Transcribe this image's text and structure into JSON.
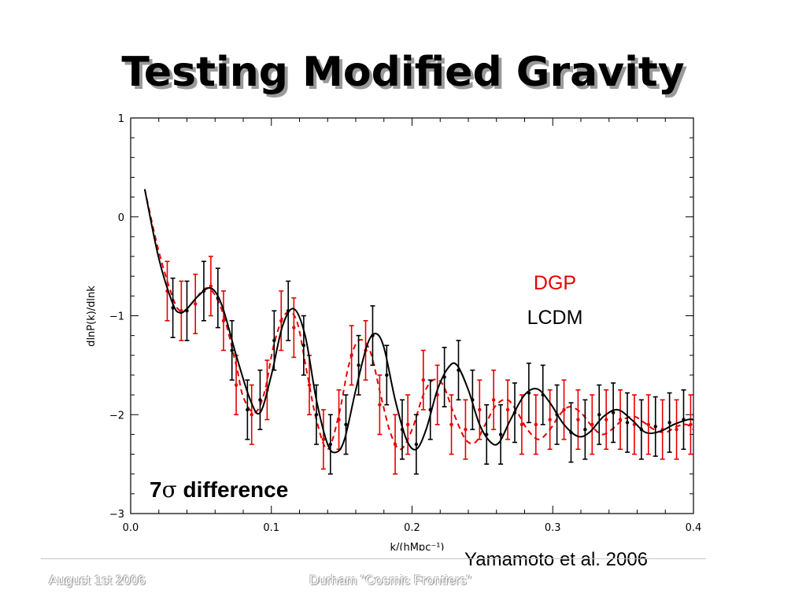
{
  "slide": {
    "title": "Testing Modified Gravity",
    "footer_left": "August 1st 2006",
    "footer_center": "Durham \"Cosmic Frontiers\""
  },
  "legend": {
    "dgp_label": "DGP",
    "lcdm_label": "LCDM",
    "dgp_color": "#e60000",
    "lcdm_color": "#000000"
  },
  "annotation": {
    "sigma_count": "7",
    "sigma_symbol": "σ",
    "text": "difference"
  },
  "citation": "Yamamoto et al. 2006",
  "chart_data": {
    "type": "line",
    "xlabel": "k/(hMpc⁻¹)",
    "ylabel": "dlnP(k)/dlnk",
    "xlim": [
      0.0,
      0.4
    ],
    "ylim": [
      -3,
      1
    ],
    "x_ticks": [
      "0.0",
      "0.1",
      "0.2",
      "0.3",
      "0.4"
    ],
    "y_ticks": [
      "1",
      "0",
      "−1",
      "−2",
      "−3"
    ],
    "grid": false,
    "legend_position": "right",
    "series": [
      {
        "name": "DGP",
        "color": "#e60000",
        "style": "dashed",
        "x": [
          0.01,
          0.02,
          0.03,
          0.035,
          0.04,
          0.045,
          0.055,
          0.065,
          0.075,
          0.08,
          0.088,
          0.095,
          0.102,
          0.11,
          0.118,
          0.125,
          0.132,
          0.14,
          0.148,
          0.155,
          0.162,
          0.17,
          0.178,
          0.185,
          0.192,
          0.2,
          0.208,
          0.215,
          0.222,
          0.23,
          0.238,
          0.245,
          0.252,
          0.26,
          0.268,
          0.275,
          0.282,
          0.29,
          0.298,
          0.305,
          0.312,
          0.32,
          0.328,
          0.335,
          0.342,
          0.35,
          0.358,
          0.365,
          0.372,
          0.38,
          0.388,
          0.395,
          0.4
        ],
        "y": [
          0.28,
          -0.35,
          -0.82,
          -0.95,
          -0.93,
          -0.85,
          -0.72,
          -0.95,
          -1.5,
          -1.82,
          -1.98,
          -1.78,
          -1.28,
          -0.98,
          -1.05,
          -1.55,
          -2.05,
          -2.35,
          -2.0,
          -1.5,
          -1.25,
          -1.35,
          -1.82,
          -2.2,
          -2.35,
          -2.15,
          -1.8,
          -1.65,
          -1.7,
          -2.0,
          -2.25,
          -2.28,
          -2.1,
          -1.9,
          -1.85,
          -1.98,
          -2.15,
          -2.25,
          -2.15,
          -2.0,
          -1.92,
          -1.98,
          -2.12,
          -2.2,
          -2.15,
          -2.05,
          -2.02,
          -2.08,
          -2.15,
          -2.18,
          -2.12,
          -2.1,
          -2.15
        ],
        "points_x": [
          0.026,
          0.036,
          0.046,
          0.057,
          0.066,
          0.075,
          0.086,
          0.097,
          0.107,
          0.116,
          0.127,
          0.137,
          0.148,
          0.157,
          0.167,
          0.177,
          0.188,
          0.197,
          0.208,
          0.218,
          0.228,
          0.238,
          0.248,
          0.258,
          0.268,
          0.278,
          0.288,
          0.298,
          0.308,
          0.318,
          0.328,
          0.338,
          0.348,
          0.358,
          0.368,
          0.378,
          0.388,
          0.398
        ],
        "points_y": [
          -0.75,
          -0.95,
          -0.88,
          -0.7,
          -1.05,
          -1.7,
          -2.0,
          -1.75,
          -1.05,
          -1.12,
          -1.7,
          -2.25,
          -2.05,
          -1.4,
          -1.35,
          -1.9,
          -2.3,
          -2.1,
          -1.65,
          -1.8,
          -2.1,
          -2.15,
          -1.95,
          -1.85,
          -1.95,
          -2.1,
          -2.1,
          -2.05,
          -1.95,
          -2.05,
          -2.1,
          -2.05,
          -2.05,
          -2.1,
          -2.1,
          -2.15,
          -2.15,
          -2.1
        ],
        "error": 0.3
      },
      {
        "name": "LCDM",
        "color": "#000000",
        "style": "solid",
        "x": [
          0.01,
          0.02,
          0.03,
          0.035,
          0.04,
          0.048,
          0.057,
          0.065,
          0.075,
          0.085,
          0.092,
          0.1,
          0.108,
          0.116,
          0.124,
          0.132,
          0.14,
          0.146,
          0.152,
          0.16,
          0.168,
          0.174,
          0.18,
          0.188,
          0.196,
          0.203,
          0.21,
          0.218,
          0.226,
          0.232,
          0.24,
          0.248,
          0.256,
          0.262,
          0.27,
          0.28,
          0.289,
          0.298,
          0.308,
          0.318,
          0.326,
          0.336,
          0.346,
          0.356,
          0.366,
          0.376,
          0.386,
          0.396,
          0.4
        ],
        "y": [
          0.28,
          -0.42,
          -0.88,
          -0.97,
          -0.93,
          -0.8,
          -0.72,
          -0.9,
          -1.4,
          -1.85,
          -1.98,
          -1.6,
          -1.1,
          -0.93,
          -1.2,
          -1.85,
          -2.3,
          -2.38,
          -2.25,
          -1.75,
          -1.3,
          -1.18,
          -1.32,
          -1.85,
          -2.25,
          -2.35,
          -2.15,
          -1.75,
          -1.52,
          -1.5,
          -1.75,
          -2.1,
          -2.28,
          -2.28,
          -2.05,
          -1.8,
          -1.74,
          -1.88,
          -2.1,
          -2.22,
          -2.18,
          -2.02,
          -1.95,
          -2.05,
          -2.18,
          -2.17,
          -2.1,
          -2.05,
          -2.05
        ],
        "points_x": [
          0.03,
          0.04,
          0.052,
          0.062,
          0.072,
          0.083,
          0.092,
          0.102,
          0.112,
          0.123,
          0.132,
          0.142,
          0.153,
          0.162,
          0.172,
          0.182,
          0.193,
          0.203,
          0.213,
          0.223,
          0.233,
          0.243,
          0.253,
          0.263,
          0.273,
          0.283,
          0.293,
          0.303,
          0.313,
          0.323,
          0.333,
          0.343,
          0.353,
          0.363,
          0.373,
          0.383,
          0.393
        ],
        "points_y": [
          -0.92,
          -0.95,
          -0.75,
          -0.82,
          -1.35,
          -1.95,
          -1.85,
          -1.25,
          -0.95,
          -1.3,
          -2.0,
          -2.3,
          -2.1,
          -1.5,
          -1.2,
          -1.6,
          -2.15,
          -2.3,
          -1.95,
          -1.62,
          -1.55,
          -1.85,
          -2.2,
          -2.2,
          -1.98,
          -1.78,
          -1.8,
          -2.0,
          -2.18,
          -2.15,
          -2.0,
          -1.98,
          -2.08,
          -2.15,
          -2.12,
          -2.08,
          -2.05
        ],
        "error": 0.3
      }
    ]
  }
}
